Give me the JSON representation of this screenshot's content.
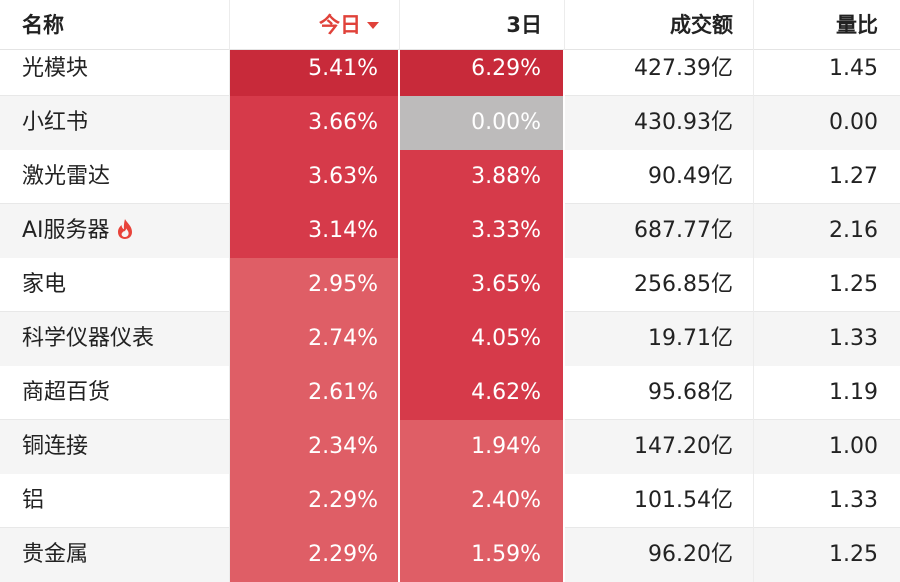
{
  "header": {
    "name": "名称",
    "today": "今日",
    "three_day": "3日",
    "amount": "成交额",
    "ratio": "量比"
  },
  "colors": {
    "sort_accent": "#e0423a",
    "heat_strong": "#c82a3a",
    "heat_medium": "#d63a4a",
    "heat_light": "#df5e66",
    "neutral": "#bdbbbb",
    "hot_icon": "#e8433a"
  },
  "rows": [
    {
      "name": "光模块",
      "today": "5.41%",
      "today_color": "#c82a3a",
      "three_day": "6.29%",
      "three_color": "#c82a3a",
      "amount": "427.39亿",
      "ratio": "1.45"
    },
    {
      "name": "小红书",
      "today": "3.66%",
      "today_color": "#d63a4a",
      "three_day": "0.00%",
      "three_color": "#bdbbbb",
      "amount": "430.93亿",
      "ratio": "0.00"
    },
    {
      "name": "激光雷达",
      "today": "3.63%",
      "today_color": "#d63a4a",
      "three_day": "3.88%",
      "three_color": "#d63a4a",
      "amount": "90.49亿",
      "ratio": "1.27"
    },
    {
      "name": "AI服务器",
      "hot": true,
      "hot_icon": "fire-icon",
      "today": "3.14%",
      "today_color": "#d63a4a",
      "three_day": "3.33%",
      "three_color": "#d63a4a",
      "amount": "687.77亿",
      "ratio": "2.16"
    },
    {
      "name": "家电",
      "today": "2.95%",
      "today_color": "#df5e66",
      "three_day": "3.65%",
      "three_color": "#d63a4a",
      "amount": "256.85亿",
      "ratio": "1.25"
    },
    {
      "name": "科学仪器仪表",
      "today": "2.74%",
      "today_color": "#df5e66",
      "three_day": "4.05%",
      "three_color": "#d63a4a",
      "amount": "19.71亿",
      "ratio": "1.33"
    },
    {
      "name": "商超百货",
      "today": "2.61%",
      "today_color": "#df5e66",
      "three_day": "4.62%",
      "three_color": "#d63a4a",
      "amount": "95.68亿",
      "ratio": "1.19"
    },
    {
      "name": "铜连接",
      "today": "2.34%",
      "today_color": "#df5e66",
      "three_day": "1.94%",
      "three_color": "#df5e66",
      "amount": "147.20亿",
      "ratio": "1.00"
    },
    {
      "name": "铝",
      "today": "2.29%",
      "today_color": "#df5e66",
      "three_day": "2.40%",
      "three_color": "#df5e66",
      "amount": "101.54亿",
      "ratio": "1.33"
    },
    {
      "name": "贵金属",
      "today": "2.29%",
      "today_color": "#df5e66",
      "three_day": "1.59%",
      "three_color": "#df5e66",
      "amount": "96.20亿",
      "ratio": "1.25"
    }
  ]
}
